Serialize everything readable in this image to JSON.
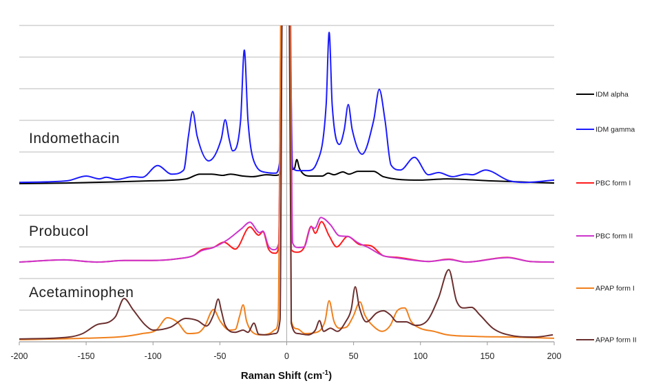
{
  "chart_data": {
    "type": "line",
    "title": "",
    "xlabel": "Raman Shift (cm",
    "xlabel_superscript": "-1",
    "xlabel_close": ")",
    "ylabel": "",
    "xlim": [
      -200,
      200
    ],
    "ylim": [
      0,
      10
    ],
    "x_ticks": [
      "-200",
      "-150",
      "-100",
      "-50",
      "0",
      "50",
      "100",
      "150",
      "200"
    ],
    "y_ticks_labeled": false,
    "grid": "horizontal",
    "legend_placement": "right",
    "annotations": [
      {
        "text": "Indomethacin",
        "group": "IDM"
      },
      {
        "text": "Probucol",
        "group": "PBC"
      },
      {
        "text": "Acetaminophen",
        "group": "APAP"
      }
    ],
    "series": [
      {
        "name": "IDM alpha",
        "color": "#000000",
        "points": [
          [
            -200,
            5.0
          ],
          [
            -165,
            5.02
          ],
          [
            -101,
            5.09
          ],
          [
            -75,
            5.15
          ],
          [
            -65,
            5.3
          ],
          [
            -56,
            5.3
          ],
          [
            -48,
            5.26
          ],
          [
            -42,
            5.3
          ],
          [
            -32.6,
            5.24
          ],
          [
            -25.5,
            5.22
          ],
          [
            -15,
            5.28
          ],
          [
            -8.5,
            5.26
          ],
          [
            -5,
            5.3
          ],
          [
            -3.5,
            11
          ],
          [
            2,
            11
          ],
          [
            3.3,
            5.48
          ],
          [
            5.5,
            5.45
          ],
          [
            7.5,
            5.76
          ],
          [
            9.5,
            5.48
          ],
          [
            17.2,
            5.24
          ],
          [
            26.5,
            5.24
          ],
          [
            31,
            5.33
          ],
          [
            35.3,
            5.28
          ],
          [
            42,
            5.37
          ],
          [
            46.6,
            5.3
          ],
          [
            53.3,
            5.39
          ],
          [
            65,
            5.39
          ],
          [
            72.3,
            5.22
          ],
          [
            99.6,
            5.11
          ],
          [
            120,
            5.15
          ],
          [
            151,
            5.09
          ],
          [
            200,
            5.02
          ]
        ]
      },
      {
        "name": "IDM gamma",
        "color": "#1a1aff",
        "points": [
          [
            -200,
            5.04
          ],
          [
            -164,
            5.09
          ],
          [
            -150,
            5.24
          ],
          [
            -140,
            5.15
          ],
          [
            -135,
            5.2
          ],
          [
            -127,
            5.13
          ],
          [
            -115,
            5.22
          ],
          [
            -108,
            5.2
          ],
          [
            -96.5,
            5.57
          ],
          [
            -86,
            5.3
          ],
          [
            -77,
            5.43
          ],
          [
            -73.5,
            6.5
          ],
          [
            -70.3,
            7.28
          ],
          [
            -67,
            6.5
          ],
          [
            -58.4,
            5.72
          ],
          [
            -49,
            6.4
          ],
          [
            -46,
            7.02
          ],
          [
            -43,
            6.4
          ],
          [
            -40.4,
            6.04
          ],
          [
            -34.5,
            7.0
          ],
          [
            -31.7,
            9.22
          ],
          [
            -29,
            7.0
          ],
          [
            -24,
            5.65
          ],
          [
            -15,
            5.35
          ],
          [
            -8.5,
            5.33
          ],
          [
            -5,
            5.8
          ],
          [
            -3.5,
            11
          ],
          [
            2,
            11
          ],
          [
            4.4,
            5.52
          ],
          [
            8.5,
            5.41
          ],
          [
            15.7,
            5.41
          ],
          [
            22.4,
            5.65
          ],
          [
            29.5,
            7.5
          ],
          [
            31.7,
            9.78
          ],
          [
            34,
            7.5
          ],
          [
            39.4,
            6.24
          ],
          [
            43,
            6.7
          ],
          [
            46,
            7.5
          ],
          [
            49,
            6.7
          ],
          [
            56.4,
            5.93
          ],
          [
            65,
            7.0
          ],
          [
            69.2,
            7.98
          ],
          [
            73.5,
            7.0
          ],
          [
            78,
            5.59
          ],
          [
            85,
            5.43
          ],
          [
            95.5,
            5.83
          ],
          [
            106,
            5.28
          ],
          [
            113.5,
            5.35
          ],
          [
            124,
            5.22
          ],
          [
            134,
            5.3
          ],
          [
            139,
            5.28
          ],
          [
            148.5,
            5.43
          ],
          [
            166.5,
            5.09
          ],
          [
            178,
            5.04
          ],
          [
            200,
            5.11
          ]
        ]
      },
      {
        "name": "PBC form I",
        "color": "#ff1a1a",
        "points": [
          [
            -200,
            2.52
          ],
          [
            -166.5,
            2.59
          ],
          [
            -142,
            2.52
          ],
          [
            -121.6,
            2.57
          ],
          [
            -101,
            2.57
          ],
          [
            -80.6,
            2.63
          ],
          [
            -70,
            2.72
          ],
          [
            -63.6,
            2.91
          ],
          [
            -55,
            2.98
          ],
          [
            -47,
            3.15
          ],
          [
            -38.4,
            2.93
          ],
          [
            -27.5,
            3.63
          ],
          [
            -21,
            3.37
          ],
          [
            -17.8,
            3.48
          ],
          [
            -13.6,
            2.93
          ],
          [
            -8.5,
            2.8
          ],
          [
            -6,
            3.0
          ],
          [
            -3.8,
            11
          ],
          [
            2.3,
            11
          ],
          [
            3.4,
            2.91
          ],
          [
            7.9,
            2.83
          ],
          [
            13,
            2.98
          ],
          [
            18.3,
            3.65
          ],
          [
            21.4,
            3.43
          ],
          [
            26,
            3.8
          ],
          [
            31.7,
            3.35
          ],
          [
            37.4,
            3.0
          ],
          [
            45.6,
            3.33
          ],
          [
            54.8,
            3.07
          ],
          [
            62.6,
            3.04
          ],
          [
            72.3,
            2.72
          ],
          [
            82.6,
            2.67
          ],
          [
            106.3,
            2.54
          ],
          [
            121.2,
            2.61
          ],
          [
            134,
            2.52
          ],
          [
            165,
            2.67
          ],
          [
            182,
            2.54
          ],
          [
            200,
            2.52
          ]
        ]
      },
      {
        "name": "PBC form II",
        "color": "#cc33cc",
        "points": [
          [
            -200,
            2.52
          ],
          [
            -166.5,
            2.59
          ],
          [
            -142,
            2.52
          ],
          [
            -121.6,
            2.57
          ],
          [
            -101,
            2.57
          ],
          [
            -80.6,
            2.63
          ],
          [
            -70,
            2.72
          ],
          [
            -63.6,
            2.88
          ],
          [
            -55,
            2.98
          ],
          [
            -44.5,
            3.22
          ],
          [
            -34,
            3.57
          ],
          [
            -27.5,
            3.78
          ],
          [
            -20.3,
            3.45
          ],
          [
            -17.8,
            3.5
          ],
          [
            -13.6,
            3.02
          ],
          [
            -9.5,
            2.91
          ],
          [
            -6,
            3.1
          ],
          [
            -4,
            11
          ],
          [
            2.5,
            11
          ],
          [
            4.4,
            3.13
          ],
          [
            8.5,
            2.98
          ],
          [
            13,
            3.0
          ],
          [
            18.3,
            3.63
          ],
          [
            21,
            3.59
          ],
          [
            25.5,
            3.93
          ],
          [
            28.3,
            3.88
          ],
          [
            32.7,
            3.7
          ],
          [
            39.4,
            3.35
          ],
          [
            45.6,
            3.33
          ],
          [
            53.3,
            3.13
          ],
          [
            61,
            2.98
          ],
          [
            72.3,
            2.72
          ],
          [
            82.6,
            2.65
          ],
          [
            106.3,
            2.54
          ],
          [
            121.2,
            2.6
          ],
          [
            134,
            2.52
          ],
          [
            165,
            2.66
          ],
          [
            182,
            2.54
          ],
          [
            200,
            2.52
          ]
        ]
      },
      {
        "name": "APAP form I",
        "color": "#f07f1b",
        "points": [
          [
            -200,
            0.07
          ],
          [
            -152.6,
            0.11
          ],
          [
            -121.6,
            0.17
          ],
          [
            -108,
            0.26
          ],
          [
            -97.6,
            0.37
          ],
          [
            -89.3,
            0.76
          ],
          [
            -82,
            0.63
          ],
          [
            -73.9,
            0.26
          ],
          [
            -66.7,
            0.28
          ],
          [
            -61.5,
            0.48
          ],
          [
            -54.8,
            1.02
          ],
          [
            -49.7,
            0.65
          ],
          [
            -43,
            0.37
          ],
          [
            -38.4,
            0.39
          ],
          [
            -35.3,
            0.8
          ],
          [
            -32.6,
            1.17
          ],
          [
            -30,
            0.65
          ],
          [
            -25.5,
            0.3
          ],
          [
            -18.8,
            0.22
          ],
          [
            -12,
            0.28
          ],
          [
            -8.5,
            0.39
          ],
          [
            -6.4,
            0.7
          ],
          [
            -4,
            11
          ],
          [
            2.5,
            11
          ],
          [
            3.4,
            0.65
          ],
          [
            7.9,
            0.41
          ],
          [
            13.6,
            0.26
          ],
          [
            22.4,
            0.3
          ],
          [
            28.6,
            0.65
          ],
          [
            31.7,
            1.3
          ],
          [
            35.3,
            0.65
          ],
          [
            39.4,
            0.43
          ],
          [
            44.5,
            0.46
          ],
          [
            49.7,
            0.8
          ],
          [
            54.8,
            1.26
          ],
          [
            58.4,
            0.85
          ],
          [
            65.1,
            0.48
          ],
          [
            71.3,
            0.33
          ],
          [
            77.5,
            0.52
          ],
          [
            82.6,
            0.98
          ],
          [
            88.3,
            1.07
          ],
          [
            92.9,
            0.65
          ],
          [
            99.6,
            0.43
          ],
          [
            110,
            0.33
          ],
          [
            120.2,
            0.22
          ],
          [
            142.3,
            0.17
          ],
          [
            168,
            0.15
          ],
          [
            200,
            0.11
          ]
        ]
      },
      {
        "name": "APAP form II",
        "color": "#6b2e2e",
        "points": [
          [
            -200,
            0.09
          ],
          [
            -163,
            0.15
          ],
          [
            -152.6,
            0.26
          ],
          [
            -142,
            0.54
          ],
          [
            -132.6,
            0.63
          ],
          [
            -128,
            0.8
          ],
          [
            -121.6,
            1.37
          ],
          [
            -115,
            1.02
          ],
          [
            -106,
            0.54
          ],
          [
            -99.6,
            0.37
          ],
          [
            -87,
            0.46
          ],
          [
            -75.4,
            0.74
          ],
          [
            -66.7,
            0.67
          ],
          [
            -60,
            0.5
          ],
          [
            -54.8,
            0.85
          ],
          [
            -51.2,
            1.35
          ],
          [
            -49,
            1.0
          ],
          [
            -46,
            0.52
          ],
          [
            -38.4,
            0.3
          ],
          [
            -32.6,
            0.37
          ],
          [
            -29,
            0.3
          ],
          [
            -24.5,
            0.59
          ],
          [
            -21,
            0.24
          ],
          [
            -15.2,
            0.22
          ],
          [
            -8.5,
            0.26
          ],
          [
            -5,
            0.7
          ],
          [
            -3.2,
            11
          ],
          [
            1.8,
            11
          ],
          [
            3.4,
            0.59
          ],
          [
            8.5,
            0.26
          ],
          [
            15.7,
            0.22
          ],
          [
            21.4,
            0.37
          ],
          [
            24.5,
            0.67
          ],
          [
            27.6,
            0.33
          ],
          [
            32.7,
            0.43
          ],
          [
            37.9,
            0.33
          ],
          [
            44,
            0.63
          ],
          [
            48.2,
            1.02
          ],
          [
            51.2,
            1.74
          ],
          [
            54.3,
            1.09
          ],
          [
            59.5,
            0.63
          ],
          [
            67.2,
            0.91
          ],
          [
            72.3,
            0.98
          ],
          [
            77.5,
            0.85
          ],
          [
            82.6,
            0.63
          ],
          [
            89.3,
            0.63
          ],
          [
            96,
            0.52
          ],
          [
            104.7,
            0.65
          ],
          [
            113.5,
            1.39
          ],
          [
            121.2,
            2.28
          ],
          [
            126.9,
            1.3
          ],
          [
            132,
            1.07
          ],
          [
            138.2,
            1.09
          ],
          [
            144.4,
            0.85
          ],
          [
            154.7,
            0.41
          ],
          [
            168,
            0.2
          ],
          [
            185.5,
            0.15
          ],
          [
            199,
            0.22
          ]
        ]
      }
    ]
  }
}
